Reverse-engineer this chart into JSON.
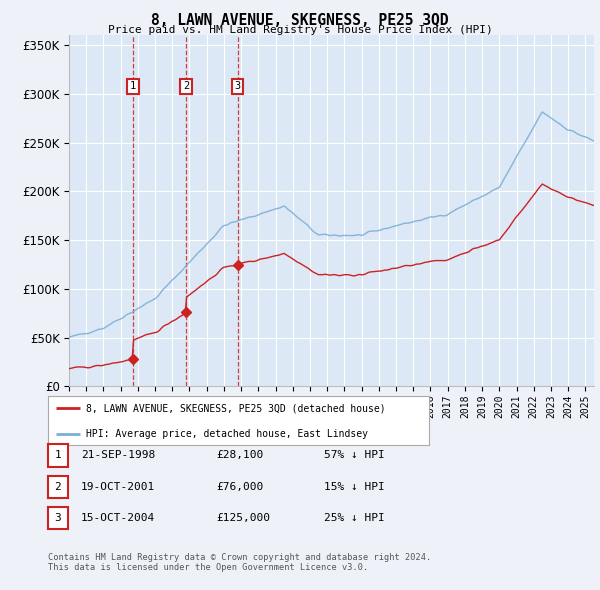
{
  "title": "8, LAWN AVENUE, SKEGNESS, PE25 3QD",
  "subtitle": "Price paid vs. HM Land Registry's House Price Index (HPI)",
  "legend_line1": "8, LAWN AVENUE, SKEGNESS, PE25 3QD (detached house)",
  "legend_line2": "HPI: Average price, detached house, East Lindsey",
  "footer1": "Contains HM Land Registry data © Crown copyright and database right 2024.",
  "footer2": "This data is licensed under the Open Government Licence v3.0.",
  "transactions": [
    {
      "num": 1,
      "date": "21-SEP-1998",
      "price": 28100,
      "hpi_diff": "57% ↓ HPI",
      "year": 1998.72
    },
    {
      "num": 2,
      "date": "19-OCT-2001",
      "price": 76000,
      "hpi_diff": "15% ↓ HPI",
      "year": 2001.79
    },
    {
      "num": 3,
      "date": "15-OCT-2004",
      "price": 125000,
      "hpi_diff": "25% ↓ HPI",
      "year": 2004.79
    }
  ],
  "hpi_color": "#7bafd4",
  "price_color": "#cc2222",
  "background_color": "#eef2f8",
  "plot_bg_color": "#dce8f5",
  "grid_color": "#ffffff",
  "ylim": [
    0,
    360000
  ],
  "xlim_start": 1995,
  "xlim_end": 2025.5
}
